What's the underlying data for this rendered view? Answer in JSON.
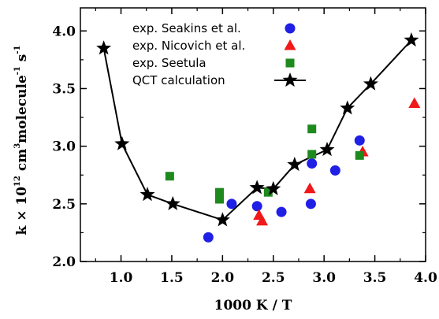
{
  "chart_data": {
    "type": "scatter",
    "xlabel": "1000 K / T",
    "ylabel_parts": {
      "k": "k × 10",
      "exp12": "12",
      "cm": " cm",
      "exp3": "3",
      "mol": "molecule",
      "expm1": "-1",
      "s": " s",
      "expm1b": "-1"
    },
    "xlim": [
      0.6,
      4.0
    ],
    "ylim": [
      2.0,
      4.2
    ],
    "xticks": [
      1.0,
      1.5,
      2.0,
      2.5,
      3.0,
      3.5,
      4.0
    ],
    "xtick_labels": [
      "1.0",
      "1.5",
      "2.0",
      "2.5",
      "3.0",
      "3.5",
      "4.0"
    ],
    "yticks": [
      2.0,
      2.5,
      3.0,
      3.5,
      4.0
    ],
    "ytick_labels": [
      "2.0",
      "2.5",
      "3.0",
      "3.5",
      "4.0"
    ],
    "legend_position": "top-center",
    "series": [
      {
        "name": "exp. Seakins et al.",
        "marker": "circle",
        "color": "#1f1fe6",
        "x": [
          1.86,
          2.09,
          2.34,
          2.58,
          2.87,
          2.88,
          3.11,
          3.35
        ],
        "y": [
          2.21,
          2.5,
          2.48,
          2.43,
          2.5,
          2.85,
          2.79,
          3.05
        ]
      },
      {
        "name": "exp. Nicovich et al.",
        "marker": "triangle",
        "color": "#f01818",
        "x": [
          2.36,
          2.39,
          2.86,
          3.38,
          3.89
        ],
        "y": [
          2.4,
          2.35,
          2.63,
          2.95,
          3.37
        ]
      },
      {
        "name": "exp. Seetula",
        "marker": "square",
        "color": "#1e8a1e",
        "x": [
          1.48,
          1.97,
          1.97,
          2.45,
          2.88,
          2.88,
          3.35
        ],
        "y": [
          2.74,
          2.54,
          2.6,
          2.6,
          3.15,
          2.93,
          2.92
        ]
      },
      {
        "name": "QCT calculation",
        "marker": "star",
        "color": "#000000",
        "line": true,
        "x": [
          0.83,
          1.01,
          1.26,
          1.51,
          2.0,
          2.34,
          2.5,
          2.71,
          3.03,
          3.23,
          3.46,
          3.86
        ],
        "y": [
          3.85,
          3.02,
          2.58,
          2.5,
          2.36,
          2.64,
          2.63,
          2.84,
          2.97,
          3.33,
          3.54,
          3.92
        ]
      }
    ]
  }
}
